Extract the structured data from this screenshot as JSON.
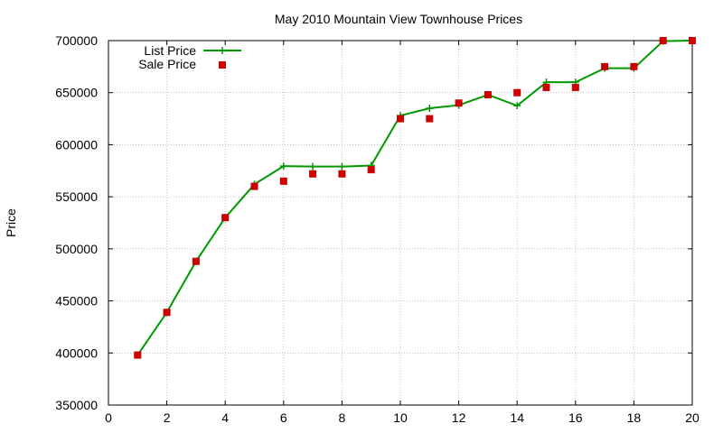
{
  "chart_data": {
    "type": "line",
    "title": "May 2010 Mountain View Townhouse Prices",
    "xlabel": "",
    "ylabel": "Price",
    "xlim": [
      0,
      20
    ],
    "ylim": [
      350000,
      700000
    ],
    "x_ticks": [
      0,
      2,
      4,
      6,
      8,
      10,
      12,
      14,
      16,
      18,
      20
    ],
    "y_ticks": [
      350000,
      400000,
      450000,
      500000,
      550000,
      600000,
      650000,
      700000
    ],
    "grid": true,
    "legend_position": "top-left",
    "series": [
      {
        "name": "List Price",
        "style": "line-with-plus-markers",
        "color": "#009900",
        "x": [
          1,
          2,
          3,
          4,
          5,
          6,
          7,
          8,
          9,
          10,
          11,
          12,
          13,
          14,
          15,
          16,
          17,
          18,
          19,
          20
        ],
        "values": [
          398000,
          439000,
          488000,
          530000,
          562000,
          579500,
          579000,
          579000,
          580000,
          628000,
          635000,
          638000,
          648000,
          637500,
          660000,
          660000,
          673500,
          673500,
          699500,
          700000
        ]
      },
      {
        "name": "Sale Price",
        "style": "square-markers",
        "color": "#cc0000",
        "x": [
          1,
          2,
          3,
          4,
          5,
          6,
          7,
          8,
          9,
          10,
          11,
          12,
          13,
          14,
          15,
          16,
          17,
          18,
          19,
          20
        ],
        "values": [
          398000,
          439000,
          488000,
          530000,
          560000,
          565000,
          572000,
          572000,
          576000,
          625000,
          625000,
          640000,
          648000,
          650000,
          655000,
          655000,
          675000,
          675000,
          700000,
          700000
        ]
      }
    ]
  }
}
